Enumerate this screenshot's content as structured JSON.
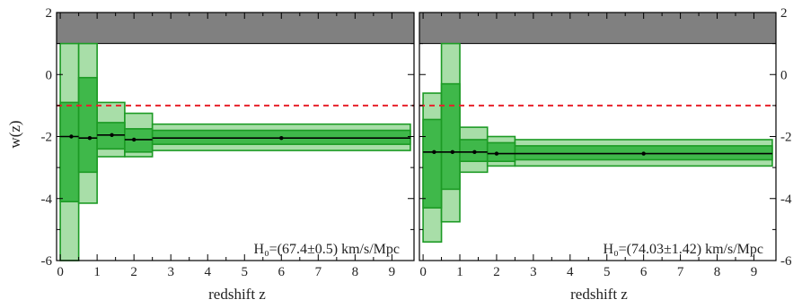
{
  "figure": {
    "ylabel": "w(z)",
    "colors": {
      "excluded_band": "#808080",
      "inner_band": "#3fb84a",
      "outer_band": "#a8dea8",
      "band_edge": "#1c9a24",
      "reference_line": "#e8202a",
      "mean_line": "#000000"
    }
  },
  "chart_data": [
    {
      "type": "bar",
      "annotation": "H₀=(67.4±0.5) km/s/Mpc",
      "xlabel": "redshift z",
      "ylabel": "w(z)",
      "xlim": [
        -0.1,
        9.6
      ],
      "ylim": [
        -6,
        2
      ],
      "xticks": [
        "0",
        "1",
        "2",
        "3",
        "4",
        "5",
        "6",
        "7",
        "8",
        "9"
      ],
      "yticks": [
        "-6",
        "-4",
        "-2",
        "0",
        "2"
      ],
      "excluded_region": [
        1,
        2
      ],
      "reference_line": -1,
      "bins": [
        {
          "z_range": [
            0,
            0.5
          ],
          "w": -2.0,
          "inner": [
            -4.1,
            -0.9
          ],
          "outer": [
            -6.0,
            1.0
          ]
        },
        {
          "z_range": [
            0.5,
            1.0
          ],
          "w": -2.05,
          "inner": [
            -3.15,
            -0.1
          ],
          "outer": [
            -4.15,
            1.0
          ]
        },
        {
          "z_range": [
            1.0,
            1.75
          ],
          "w": -1.95,
          "inner": [
            -2.4,
            -1.55
          ],
          "outer": [
            -2.65,
            -0.9
          ]
        },
        {
          "z_range": [
            1.75,
            2.5
          ],
          "w": -2.1,
          "inner": [
            -2.5,
            -1.75
          ],
          "outer": [
            -2.65,
            -1.25
          ]
        },
        {
          "z_range": [
            2.5,
            9.5
          ],
          "w": -2.05,
          "inner": [
            -2.25,
            -1.8
          ],
          "outer": [
            -2.45,
            -1.6
          ]
        }
      ],
      "points": {
        "z": [
          0.3,
          0.8,
          1.4,
          2.0,
          6.0
        ],
        "w": [
          -2.0,
          -2.05,
          -1.95,
          -2.1,
          -2.05
        ]
      }
    },
    {
      "type": "bar",
      "annotation": "H₀=(74.03±1.42) km/s/Mpc",
      "xlabel": "redshift z",
      "ylabel": "w(z)",
      "xlim": [
        -0.1,
        9.6
      ],
      "ylim": [
        -6,
        2
      ],
      "xticks": [
        "0",
        "1",
        "2",
        "3",
        "4",
        "5",
        "6",
        "7",
        "8",
        "9"
      ],
      "yticks": [
        "-6",
        "-4",
        "-2",
        "0",
        "2"
      ],
      "excluded_region": [
        1,
        2
      ],
      "reference_line": -1,
      "bins": [
        {
          "z_range": [
            0,
            0.5
          ],
          "w": -2.5,
          "inner": [
            -4.3,
            -1.45
          ],
          "outer": [
            -5.4,
            -0.6
          ]
        },
        {
          "z_range": [
            0.5,
            1.0
          ],
          "w": -2.5,
          "inner": [
            -3.7,
            -0.3
          ],
          "outer": [
            -4.75,
            1.0
          ]
        },
        {
          "z_range": [
            1.0,
            1.75
          ],
          "w": -2.5,
          "inner": [
            -2.8,
            -2.1
          ],
          "outer": [
            -3.15,
            -1.7
          ]
        },
        {
          "z_range": [
            1.75,
            2.5
          ],
          "w": -2.55,
          "inner": [
            -2.8,
            -2.2
          ],
          "outer": [
            -2.95,
            -2.0
          ]
        },
        {
          "z_range": [
            2.5,
            9.5
          ],
          "w": -2.55,
          "inner": [
            -2.75,
            -2.3
          ],
          "outer": [
            -2.95,
            -2.1
          ]
        }
      ],
      "points": {
        "z": [
          0.3,
          0.8,
          1.4,
          2.0,
          6.0
        ],
        "w": [
          -2.5,
          -2.5,
          -2.5,
          -2.55,
          -2.55
        ]
      }
    }
  ]
}
